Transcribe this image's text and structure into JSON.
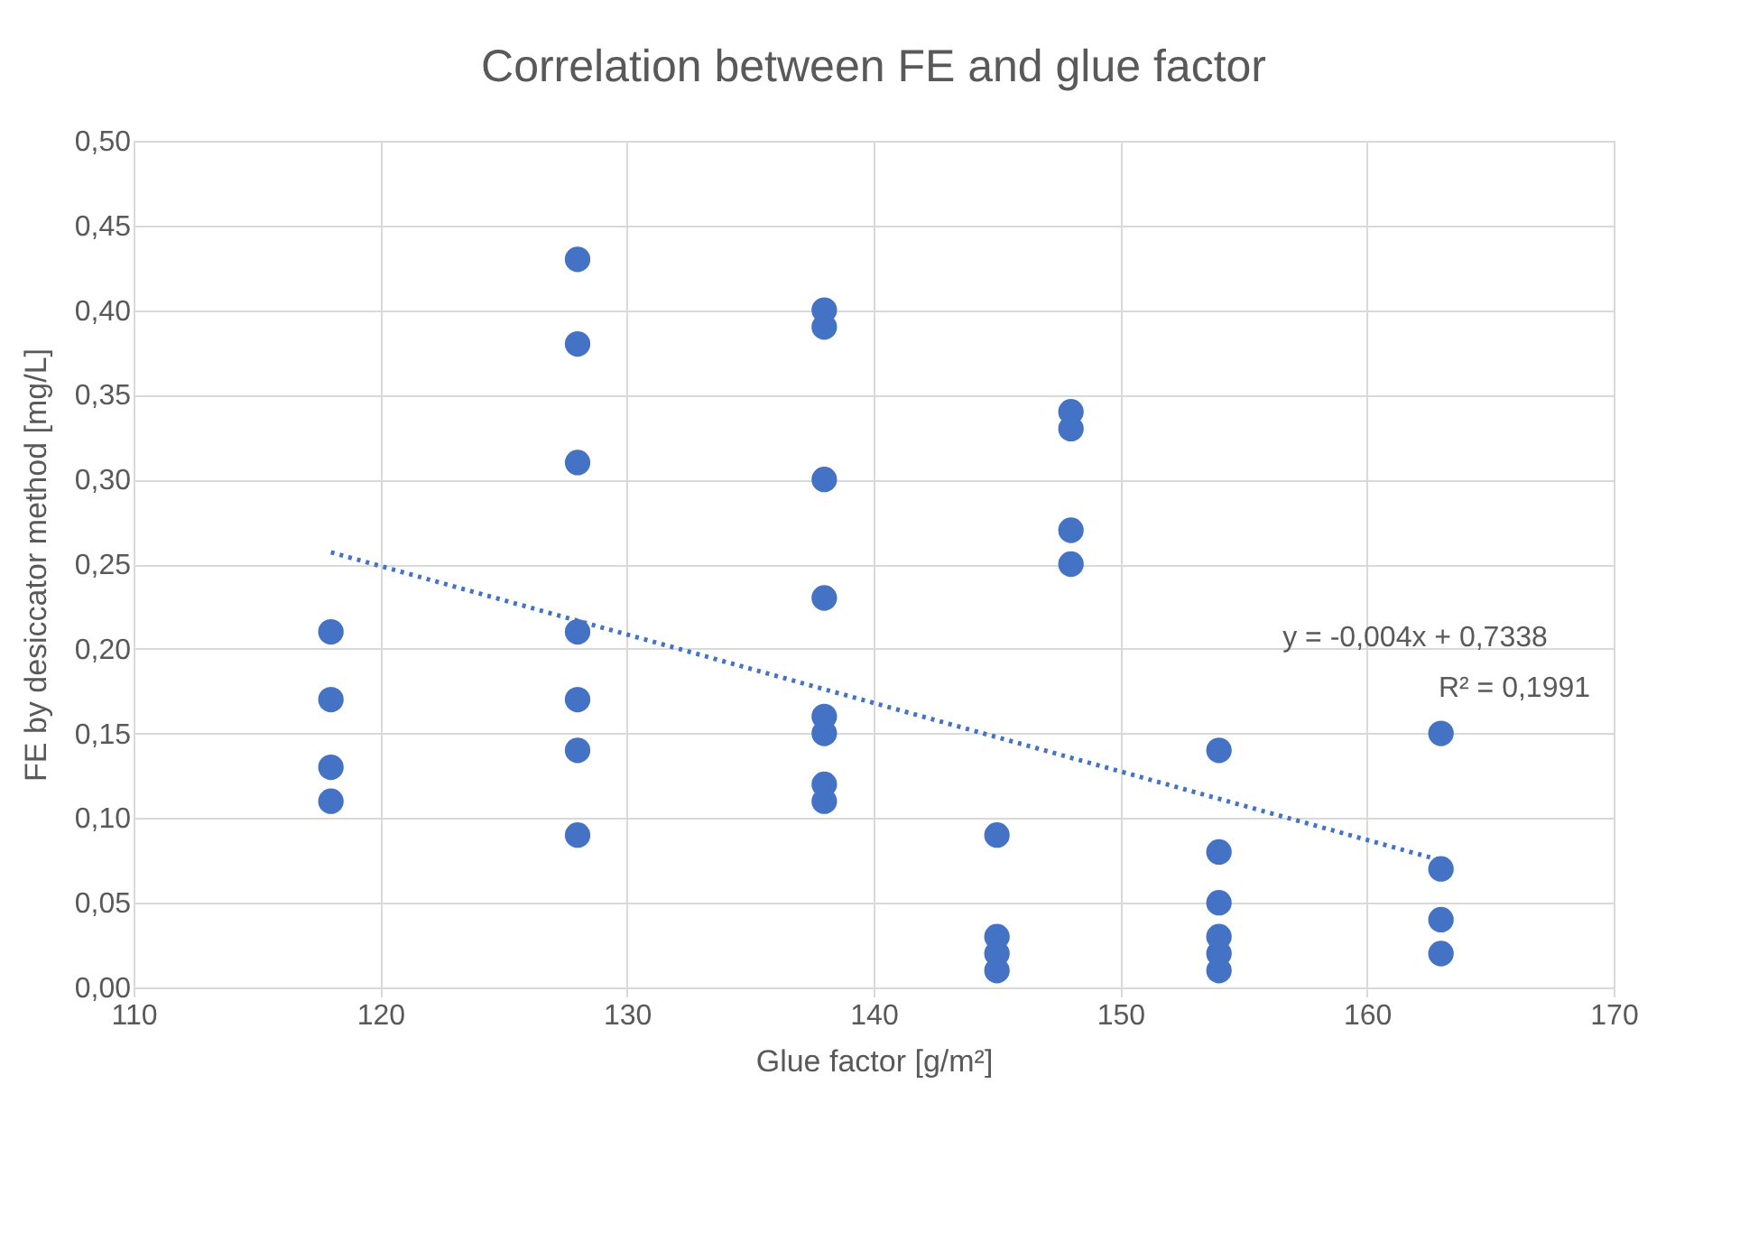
{
  "chart_data": {
    "type": "scatter",
    "title": "Correlation between FE and glue factor",
    "xlabel": "Glue factor [g/m²]",
    "ylabel": "FE by desiccator method [mg/L]",
    "annotations": [
      "y = -0,004x + 0,7338",
      "R² = 0,1991"
    ],
    "series": [
      {
        "color": "#4472c4",
        "marker": "circle",
        "x": [
          118,
          118,
          118,
          118,
          128,
          128,
          128,
          128,
          128,
          128,
          128,
          138,
          138,
          138,
          138,
          138,
          138,
          138,
          138,
          145,
          145,
          145,
          145,
          148,
          148,
          148,
          148,
          154,
          154,
          154,
          154,
          154,
          154,
          163,
          163,
          163,
          163
        ],
        "values": [
          0.21,
          0.17,
          0.13,
          0.11,
          0.43,
          0.38,
          0.31,
          0.21,
          0.17,
          0.14,
          0.09,
          0.4,
          0.39,
          0.3,
          0.23,
          0.16,
          0.15,
          0.12,
          0.11,
          0.09,
          0.03,
          0.02,
          0.01,
          0.34,
          0.33,
          0.27,
          0.25,
          0.14,
          0.08,
          0.05,
          0.03,
          0.02,
          0.01,
          0.15,
          0.07,
          0.04,
          0.02
        ]
      },
      {
        "type": "line",
        "color": "#4472c4",
        "line_style": "dotted",
        "marker": "none",
        "x": [
          118,
          163
        ],
        "values": [
          0.257,
          0.075
        ]
      }
    ],
    "xlim": [
      110,
      170
    ],
    "xticks": [
      110,
      120,
      130,
      140,
      150,
      160,
      170
    ],
    "ylim": [
      0,
      0.5
    ],
    "yticks": [
      {
        "value": 0,
        "label": "0,00"
      },
      {
        "value": 0.05,
        "label": "0,05"
      },
      {
        "value": 0.1,
        "label": "0,10"
      },
      {
        "value": 0.15,
        "label": "0,15"
      },
      {
        "value": 0.2,
        "label": "0,20"
      },
      {
        "value": 0.25,
        "label": "0,25"
      },
      {
        "value": 0.3,
        "label": "0,30"
      },
      {
        "value": 0.35,
        "label": "0,35"
      },
      {
        "value": 0.4,
        "label": "0,40"
      },
      {
        "value": 0.45,
        "label": "0,45"
      },
      {
        "value": 0.5,
        "label": "0,50"
      }
    ],
    "grid": true
  }
}
